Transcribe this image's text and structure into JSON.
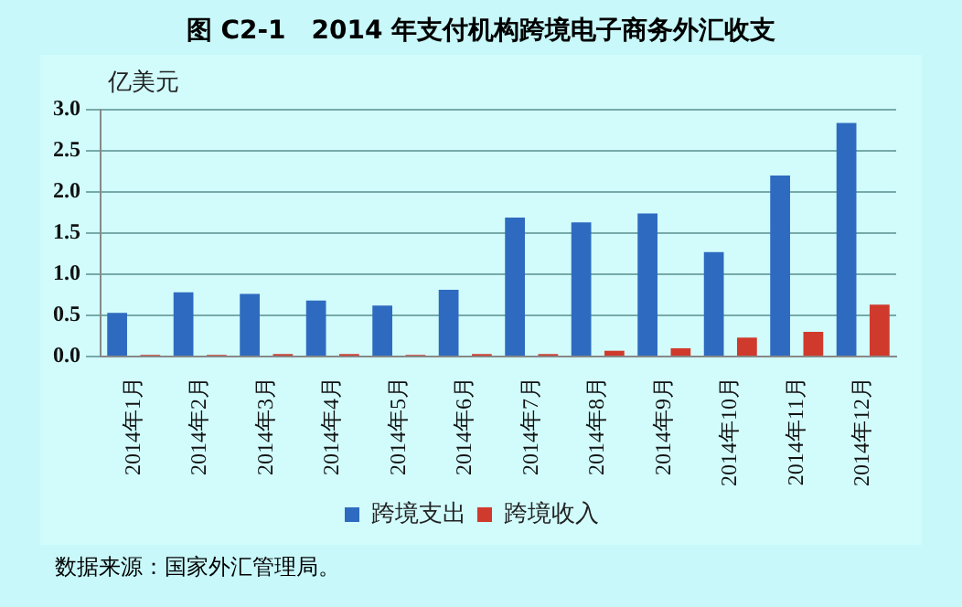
{
  "chart_data": {
    "type": "bar",
    "title": "图 C2-1　2014 年支付机构跨境电子商务外汇收支",
    "ylabel": "亿美元",
    "categories": [
      "2014年1月",
      "2014年2月",
      "2014年3月",
      "2014年4月",
      "2014年5月",
      "2014年6月",
      "2014年7月",
      "2014年8月",
      "2014年9月",
      "2014年10月",
      "2014年11月",
      "2014年12月"
    ],
    "series": [
      {
        "name": "跨境支出",
        "color": "#2e6bc0",
        "values": [
          0.53,
          0.78,
          0.76,
          0.68,
          0.62,
          0.81,
          1.69,
          1.63,
          1.74,
          1.27,
          2.2,
          2.84
        ]
      },
      {
        "name": "跨境收入",
        "color": "#d03a2c",
        "values": [
          0.02,
          0.02,
          0.03,
          0.03,
          0.02,
          0.03,
          0.03,
          0.07,
          0.1,
          0.23,
          0.3,
          0.63
        ]
      }
    ],
    "ylim": [
      0,
      3
    ],
    "yticks": [
      {
        "value": 0,
        "label": "0.0"
      },
      0.5,
      {
        "value": 1,
        "label": "1.0"
      },
      1.5,
      {
        "value": 2,
        "label": "2.0"
      },
      2.5,
      {
        "value": 3,
        "label": "3.0"
      }
    ],
    "grid": "y",
    "legend": "bottom",
    "annotations": [
      "数据来源：国家外汇管理局。"
    ]
  }
}
